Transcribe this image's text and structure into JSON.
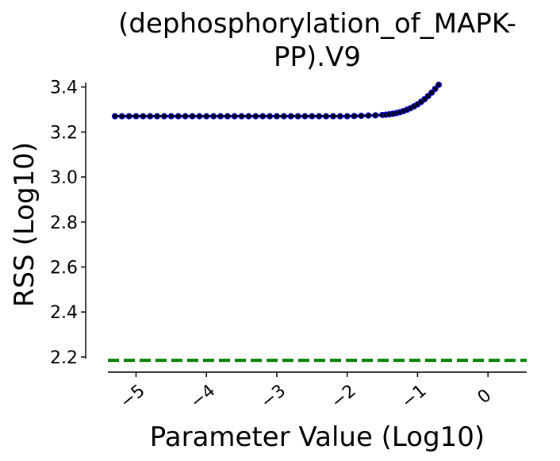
{
  "chart_data": {
    "type": "line",
    "title_lines": [
      "(dephosphorylation_of_MAPK-",
      "PP).V9"
    ],
    "xlabel": "Parameter Value (Log10)",
    "ylabel": "RSS (Log10)",
    "xlim": [
      -5.4,
      0.55
    ],
    "ylim": [
      2.175,
      3.42
    ],
    "xticks": [
      -5,
      -4,
      -3,
      -2,
      -1,
      0
    ],
    "xtick_labels": [
      "−5",
      "−4",
      "−3",
      "−2",
      "−1",
      "0"
    ],
    "yticks": [
      2.2,
      2.4,
      2.6,
      2.8,
      3.0,
      3.2,
      3.4
    ],
    "ytick_labels": [
      "2.2",
      "2.4",
      "2.6",
      "2.8",
      "3.0",
      "3.2",
      "3.4"
    ],
    "grid": false,
    "legend": "none",
    "series": [
      {
        "role": "profile",
        "color": "#000000",
        "marker_edge_color": "#0000ff",
        "x": [
          -5.3,
          -5.2,
          -5.1,
          -5.0,
          -4.9,
          -4.8,
          -4.7,
          -4.6,
          -4.5,
          -4.4,
          -4.3,
          -4.2,
          -4.1,
          -4.0,
          -3.9,
          -3.8,
          -3.7,
          -3.6,
          -3.5,
          -3.4,
          -3.3,
          -3.2,
          -3.1,
          -3.0,
          -2.9,
          -2.8,
          -2.7,
          -2.6,
          -2.5,
          -2.4,
          -2.3,
          -2.2,
          -2.1,
          -2.0,
          -1.9,
          -1.8,
          -1.7,
          -1.6,
          -1.5,
          -1.45,
          -1.4,
          -1.35,
          -1.3,
          -1.25,
          -1.2,
          -1.15,
          -1.1,
          -1.05,
          -1.0,
          -0.95,
          -0.9,
          -0.85,
          -0.8,
          -0.75,
          -0.7
        ],
        "y": [
          3.27,
          3.27,
          3.27,
          3.27,
          3.27,
          3.27,
          3.27,
          3.27,
          3.27,
          3.27,
          3.27,
          3.27,
          3.27,
          3.27,
          3.27,
          3.27,
          3.27,
          3.27,
          3.27,
          3.27,
          3.27,
          3.27,
          3.27,
          3.27,
          3.27,
          3.27,
          3.27,
          3.27,
          3.27,
          3.27,
          3.27,
          3.27,
          3.27,
          3.27,
          3.271,
          3.272,
          3.273,
          3.274,
          3.276,
          3.277,
          3.279,
          3.281,
          3.284,
          3.288,
          3.293,
          3.299,
          3.306,
          3.314,
          3.323,
          3.334,
          3.346,
          3.36,
          3.375,
          3.392,
          3.41
        ]
      },
      {
        "role": "threshold",
        "color": "#008000",
        "style": "dashed",
        "x": [
          -5.4,
          0.55
        ],
        "y": [
          2.185,
          2.185
        ]
      }
    ]
  }
}
